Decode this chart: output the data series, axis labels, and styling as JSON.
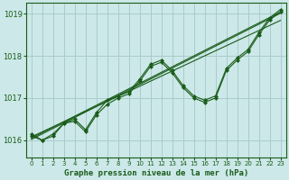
{
  "xlabel": "Graphe pression niveau de la mer (hPa)",
  "bg_color": "#cce8e8",
  "grid_color": "#aacccc",
  "line_color": "#1a5c1a",
  "marker_color": "#1a5c1a",
  "ylim": [
    1015.6,
    1019.25
  ],
  "xlim": [
    -0.5,
    23.5
  ],
  "yticks": [
    1016,
    1017,
    1018,
    1019
  ],
  "xticks": [
    0,
    1,
    2,
    3,
    4,
    5,
    6,
    7,
    8,
    9,
    10,
    11,
    12,
    13,
    14,
    15,
    16,
    17,
    18,
    19,
    20,
    21,
    22,
    23
  ],
  "series1": [
    1016.1,
    1016.0,
    1016.1,
    1016.4,
    1016.45,
    1016.2,
    1016.6,
    1016.85,
    1017.0,
    1017.1,
    1017.4,
    1017.75,
    1017.85,
    1017.6,
    1017.25,
    1017.0,
    1016.9,
    1017.0,
    1017.65,
    1017.9,
    1018.1,
    1018.5,
    1018.85,
    1019.05
  ],
  "series2": [
    1016.15,
    1016.0,
    1016.15,
    1016.4,
    1016.5,
    1016.25,
    1016.65,
    1016.95,
    1017.05,
    1017.15,
    1017.45,
    1017.8,
    1017.9,
    1017.65,
    1017.3,
    1017.05,
    1016.95,
    1017.05,
    1017.7,
    1017.95,
    1018.15,
    1018.55,
    1018.9,
    1019.1
  ],
  "trend1": [
    1016.05,
    1016.18,
    1016.31,
    1016.44,
    1016.57,
    1016.7,
    1016.83,
    1016.96,
    1017.09,
    1017.22,
    1017.35,
    1017.48,
    1017.61,
    1017.74,
    1017.87,
    1018.0,
    1018.13,
    1018.26,
    1018.39,
    1018.52,
    1018.65,
    1018.78,
    1018.91,
    1019.04
  ],
  "trend2": [
    1016.08,
    1016.2,
    1016.32,
    1016.44,
    1016.56,
    1016.68,
    1016.8,
    1016.92,
    1017.04,
    1017.16,
    1017.28,
    1017.4,
    1017.52,
    1017.64,
    1017.76,
    1017.88,
    1018.0,
    1018.12,
    1018.24,
    1018.36,
    1018.48,
    1018.6,
    1018.72,
    1018.84
  ],
  "trend3": [
    1016.02,
    1016.15,
    1016.28,
    1016.41,
    1016.54,
    1016.67,
    1016.8,
    1016.93,
    1017.06,
    1017.19,
    1017.32,
    1017.45,
    1017.58,
    1017.71,
    1017.84,
    1017.97,
    1018.1,
    1018.23,
    1018.36,
    1018.49,
    1018.62,
    1018.75,
    1018.88,
    1019.01
  ]
}
